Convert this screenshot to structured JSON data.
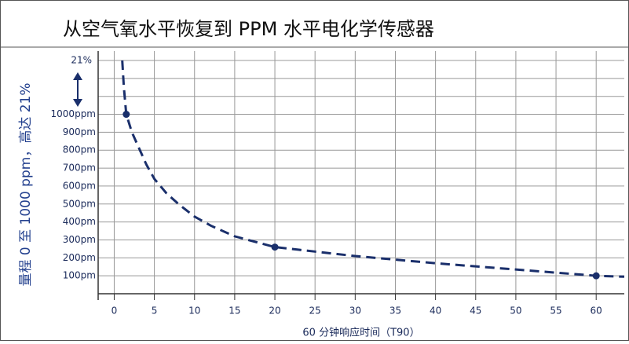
{
  "chart_data": {
    "type": "line",
    "title": "从空气氧水平恢复到 PPM 水平电化学传感器",
    "ylabel": "量程 0 至 1000 ppm，高达 21%",
    "xlabel": "60 分钟响应时间（T90）",
    "top_label": "21%",
    "xlim": [
      -2,
      63.5
    ],
    "ylim": [
      0,
      1300
    ],
    "xticks": [
      0,
      5,
      10,
      15,
      20,
      25,
      30,
      35,
      40,
      45,
      50,
      55,
      60
    ],
    "yticks": [
      {
        "value": 100,
        "label": "100pm"
      },
      {
        "value": 200,
        "label": "200pm"
      },
      {
        "value": 300,
        "label": "300pm"
      },
      {
        "value": 400,
        "label": "400pm"
      },
      {
        "value": 500,
        "label": "500pm"
      },
      {
        "value": 600,
        "label": "600pm"
      },
      {
        "value": 700,
        "label": "700pm"
      },
      {
        "value": 800,
        "label": "800pm"
      },
      {
        "value": 900,
        "label": "900pm"
      },
      {
        "value": 1000,
        "label": "1000ppm"
      }
    ],
    "ygrid": [
      1100,
      1200,
      1300
    ],
    "grid": true,
    "series": [
      {
        "color": "#1a2f6b",
        "x": [
          1,
          1.2,
          1.5,
          2.2,
          3,
          4,
          5,
          6.5,
          8,
          10,
          12,
          15,
          20,
          25,
          30,
          40,
          50,
          60,
          63.5
        ],
        "values": [
          1300,
          1150,
          1000,
          900,
          820,
          720,
          640,
          560,
          500,
          430,
          380,
          320,
          260,
          235,
          210,
          170,
          135,
          100,
          95
        ]
      }
    ],
    "points": {
      "x": [
        1.5,
        20,
        60
      ],
      "values": [
        1000,
        260,
        100
      ]
    }
  }
}
